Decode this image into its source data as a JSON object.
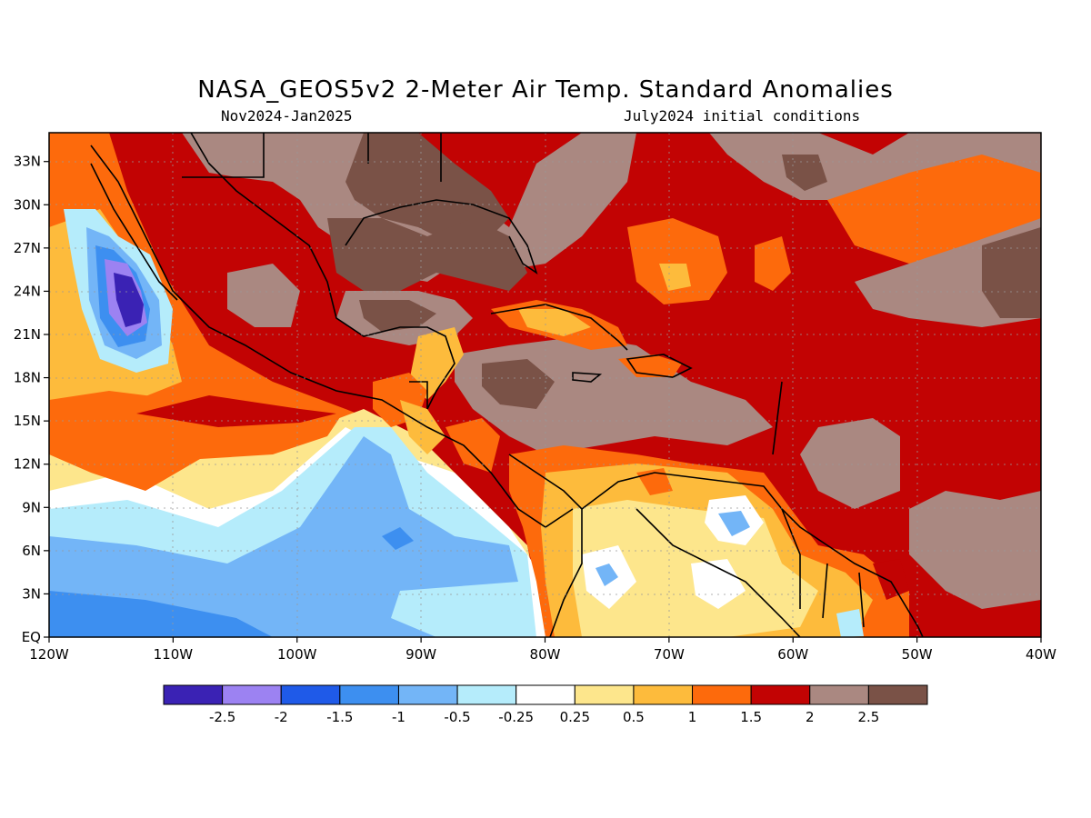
{
  "title": "NASA_GEOS5v2 2-Meter Air Temp. Standard Anomalies",
  "subtitle_left": "Nov2024-Jan2025",
  "subtitle_right": "July2024 initial conditions",
  "map": {
    "lon_range": [
      -120,
      -40
    ],
    "lat_range": [
      0,
      35
    ],
    "x_ticks": [
      "120W",
      "110W",
      "100W",
      "90W",
      "80W",
      "70W",
      "60W",
      "50W",
      "40W"
    ],
    "y_ticks": [
      "EQ",
      "3N",
      "6N",
      "9N",
      "12N",
      "15N",
      "18N",
      "21N",
      "24N",
      "27N",
      "30N",
      "33N"
    ],
    "grid": true
  },
  "colorbar": {
    "colors": [
      "#3a22b4",
      "#9c82f2",
      "#1f5ae8",
      "#3d8ff0",
      "#73b5f7",
      "#b5ecfb",
      "#ffffff",
      "#fde68c",
      "#fdbb3c",
      "#fd6a0c",
      "#c20303",
      "#aa8881",
      "#7a5247"
    ],
    "labels": [
      "-2.5",
      "-2",
      "-1.5",
      "-1",
      "-0.5",
      "-0.25",
      "0.25",
      "0.5",
      "1",
      "1.5",
      "2",
      "2.5"
    ]
  }
}
